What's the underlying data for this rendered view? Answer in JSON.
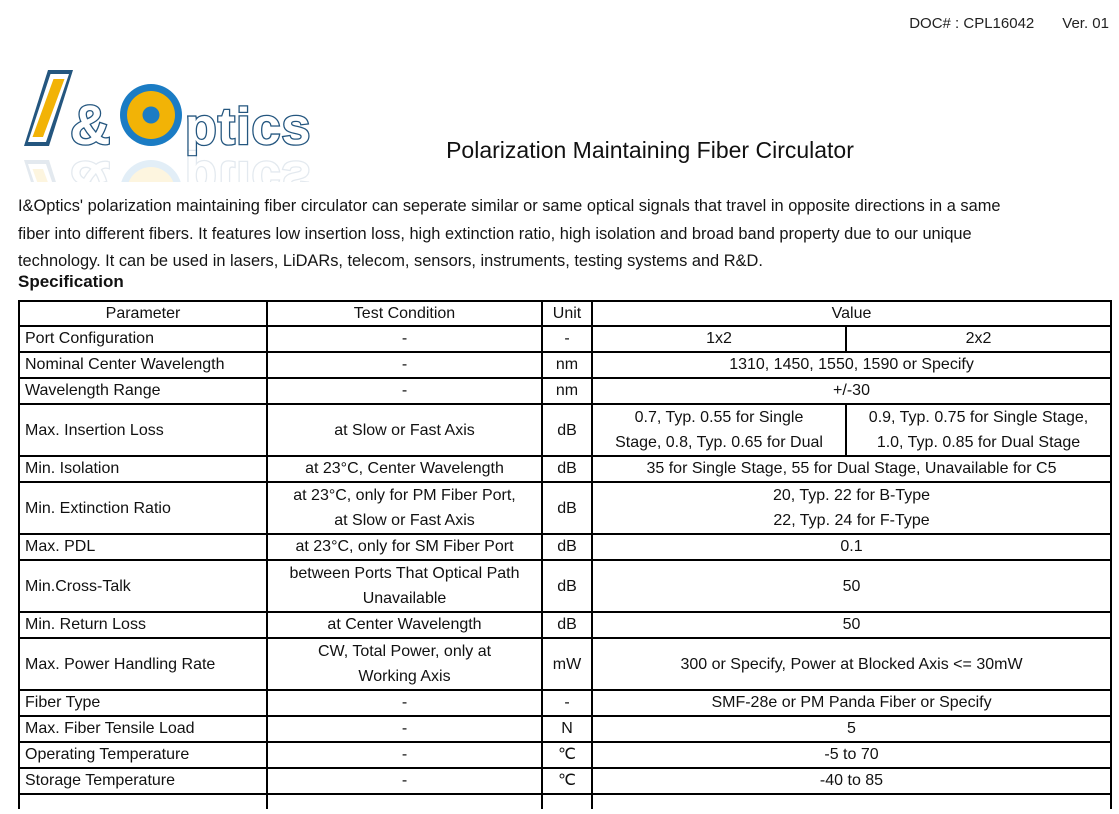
{
  "doc_ref": {
    "label": "DOC# : CPL16042",
    "version": "Ver. 01"
  },
  "logo": {
    "name": "I&Optics",
    "amp": "&",
    "ptics": "ptics",
    "colors": {
      "outline_blue": "#24567f",
      "ring_blue": "#1b7cc4",
      "yellow": "#f2b306"
    }
  },
  "title": "Polarization Maintaining Fiber Circulator",
  "description_lines": [
    "I&Optics' polarization maintaining fiber circulator can seperate similar or same optical signals that travel in opposite directions in a same",
    "fiber into different fibers. It features low insertion loss, high extinction ratio, high isolation and broad band property due to our unique",
    "technology. It can be used in lasers, LiDARs, telecom, sensors, instruments, testing systems and R&D."
  ],
  "section_heading": "Specification",
  "table": {
    "headers": {
      "parameter": "Parameter",
      "condition": "Test Condition",
      "unit": "Unit",
      "value": "Value"
    },
    "rows": [
      {
        "parameter": "Port Configuration",
        "condition": "-",
        "unit": "-",
        "values": [
          "1x2",
          "2x2"
        ]
      },
      {
        "parameter": "Nominal Center Wavelength",
        "condition": "-",
        "unit": "nm",
        "value": "1310, 1450, 1550, 1590 or Specify"
      },
      {
        "parameter": "Wavelength Range",
        "condition": "-",
        "unit": "nm",
        "value": "+/-30"
      },
      {
        "parameter": "Max. Insertion Loss",
        "condition": "at Slow or Fast Axis",
        "unit": "dB",
        "tall": true,
        "values_lines": [
          [
            "0.7, Typ. 0.55 for Single",
            "Stage, 0.8, Typ. 0.65 for Dual"
          ],
          [
            "0.9, Typ. 0.75 for Single Stage,",
            "1.0, Typ. 0.85 for Dual Stage"
          ]
        ]
      },
      {
        "parameter": "Min. Isolation",
        "condition": "at 23°C, Center Wavelength",
        "unit": "dB",
        "value": "35 for Single Stage, 55 for Dual Stage, Unavailable for C5"
      },
      {
        "parameter": "Min. Extinction Ratio",
        "condition_lines": [
          "at 23°C, only for PM Fiber Port,",
          "at Slow or Fast Axis"
        ],
        "unit": "dB",
        "tall": true,
        "value_lines": [
          "20, Typ. 22 for B-Type",
          "22, Typ. 24 for F-Type"
        ]
      },
      {
        "parameter": "Max. PDL",
        "condition": "at 23°C, only for SM Fiber Port",
        "unit": "dB",
        "value": "0.1"
      },
      {
        "parameter": "Min.Cross-Talk",
        "condition_lines": [
          "between Ports That Optical Path",
          "Unavailable"
        ],
        "unit": "dB",
        "tall": true,
        "value": "50"
      },
      {
        "parameter": "Min. Return Loss",
        "condition": "at Center Wavelength",
        "unit": "dB",
        "value": "50"
      },
      {
        "parameter": "Max. Power Handling Rate",
        "condition_lines": [
          "CW, Total Power, only at",
          "Working Axis"
        ],
        "unit": "mW",
        "tall": true,
        "value": "300 or Specify, Power at Blocked Axis <= 30mW"
      },
      {
        "parameter": "Fiber Type",
        "condition": "-",
        "unit": "-",
        "value": "SMF-28e or PM Panda Fiber or Specify"
      },
      {
        "parameter": "Max. Fiber Tensile Load",
        "condition": "-",
        "unit": "N",
        "value": "5"
      },
      {
        "parameter": "Operating Temperature",
        "condition": "-",
        "unit": "℃",
        "value": "-5 to 70"
      },
      {
        "parameter": "Storage Temperature",
        "condition": "-",
        "unit": "℃",
        "value": "-40 to 85"
      }
    ]
  }
}
